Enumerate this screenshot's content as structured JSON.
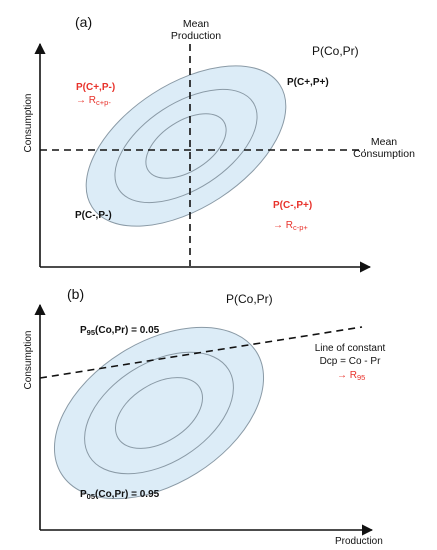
{
  "colors": {
    "ellipse_fill": "#dcecf7",
    "ellipse_stroke": "#8a9aa6",
    "axis": "#111111",
    "highlight": "#e8322b"
  },
  "panel_a": {
    "label": "(a)",
    "mean_production": [
      "Mean",
      "Production"
    ],
    "distribution": "P(Co,Pr)",
    "y_axis": "Consumption",
    "mean_consumption": [
      "Mean",
      "Consumption"
    ],
    "q_cp_neg": {
      "prob": "P(C+,P-)",
      "arrow": "→",
      "result_prefix": "R",
      "result_sub": "c+p-"
    },
    "q_cp_pos": {
      "prob": "P(C+,P+)"
    },
    "q_cn_neg": {
      "prob": "P(C-,P-)"
    },
    "q_cn_pos": {
      "prob": "P(C-,P+)",
      "arrow": "→",
      "result_prefix": "R",
      "result_sub": "c-p+"
    }
  },
  "panel_b": {
    "label": "(b)",
    "distribution": "P(Co,Pr)",
    "y_axis": "Consumption",
    "x_axis": "Production",
    "p95_prefix": "P",
    "p95_sub": "95",
    "p95_rest": "(Co,Pr) = 0.05",
    "p05_prefix": "P",
    "p05_sub": "05",
    "p05_rest": "(Co,Pr) = 0.95",
    "line_text": [
      "Line of constant",
      "Dcp = Co - Pr"
    ],
    "r95_arrow": "→",
    "r95_prefix": "R",
    "r95_sub": "95"
  }
}
